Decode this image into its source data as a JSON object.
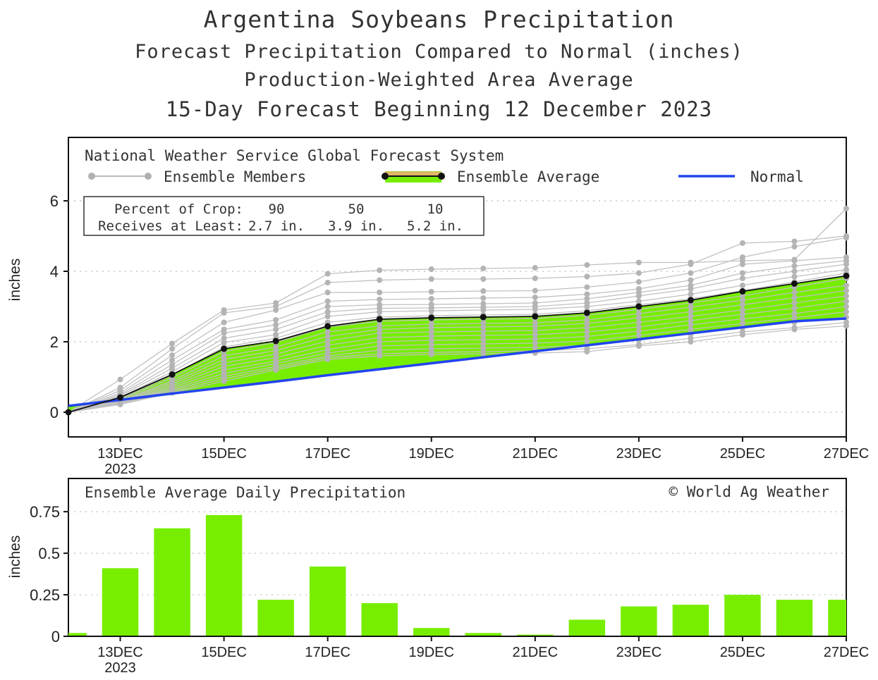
{
  "titles": {
    "main": "Argentina Soybeans Precipitation",
    "line2": "Forecast Precipitation Compared to Normal (inches)",
    "line3": "Production-Weighted Area Average",
    "line4": "15-Day Forecast Beginning 12 December 2023"
  },
  "legend": {
    "model": "National Weather Service Global Forecast System",
    "members": "Ensemble Members",
    "average": "Ensemble Average",
    "normal": "Normal"
  },
  "crop_box": {
    "row1_label": "Percent of Crop:",
    "row1_values": [
      "90",
      "50",
      "10"
    ],
    "row2_label": "Receives at Least:",
    "row2_values": [
      "2.7 in.",
      "3.9 in.",
      "5.2 in."
    ]
  },
  "bottom_panel": {
    "title": "Ensemble Average Daily Precipitation",
    "credit": "© World Ag Weather"
  },
  "colors": {
    "fill": "#77ee00",
    "normal": "#2244ee",
    "member": "#c0c0c0",
    "average": "#111111",
    "bar": "#77ee00"
  },
  "chart_data": [
    {
      "type": "line",
      "title": "Forecast Precipitation Compared to Normal (inches)",
      "ylabel": "inches",
      "xlabel": "",
      "xlim": [
        12,
        27
      ],
      "ylim": [
        -0.7,
        7.8
      ],
      "yticks": [
        0,
        2,
        4,
        6
      ],
      "ytick_labels": [
        "0",
        "2",
        "4",
        "6"
      ],
      "x_tick_days": [
        13,
        15,
        17,
        19,
        21,
        23,
        25,
        27
      ],
      "x_tick_labels": [
        "13DEC",
        "15DEC",
        "17DEC",
        "19DEC",
        "21DEC",
        "23DEC",
        "25DEC",
        "27DEC"
      ],
      "x_year_label": "2023",
      "x": [
        12,
        13,
        14,
        15,
        16,
        17,
        18,
        19,
        20,
        21,
        22,
        23,
        24,
        25,
        26,
        27
      ],
      "series": [
        {
          "name": "Ensemble Average",
          "values": [
            0.0,
            0.42,
            1.07,
            1.8,
            2.02,
            2.44,
            2.64,
            2.68,
            2.7,
            2.72,
            2.82,
            3.0,
            3.18,
            3.43,
            3.65,
            3.87
          ]
        },
        {
          "name": "Normal",
          "values": [
            0.18,
            0.35,
            0.53,
            0.7,
            0.87,
            1.05,
            1.22,
            1.39,
            1.56,
            1.73,
            1.9,
            2.07,
            2.24,
            2.41,
            2.58,
            2.66
          ]
        }
      ],
      "members": [
        [
          0.0,
          0.93,
          1.95,
          2.9,
          3.1,
          3.93,
          4.03,
          4.06,
          4.08,
          4.1,
          4.18,
          4.25,
          4.25,
          4.3,
          4.33,
          5.78
        ],
        [
          0.0,
          0.7,
          1.8,
          2.82,
          3.0,
          3.68,
          3.75,
          3.78,
          3.78,
          3.8,
          3.85,
          3.95,
          4.2,
          4.8,
          4.85,
          5.0
        ],
        [
          0.0,
          0.62,
          1.62,
          2.55,
          2.9,
          3.4,
          3.4,
          3.42,
          3.44,
          3.45,
          3.55,
          3.7,
          3.95,
          4.4,
          4.7,
          4.95
        ],
        [
          0.0,
          0.55,
          1.48,
          2.35,
          2.62,
          3.15,
          3.2,
          3.22,
          3.24,
          3.26,
          3.35,
          3.5,
          3.75,
          4.2,
          4.3,
          4.4
        ],
        [
          0.0,
          0.5,
          1.35,
          2.25,
          2.48,
          3.0,
          3.05,
          3.06,
          3.08,
          3.1,
          3.22,
          3.4,
          3.6,
          3.95,
          4.15,
          4.3
        ],
        [
          0.0,
          0.46,
          1.25,
          2.1,
          2.35,
          2.85,
          2.95,
          2.96,
          2.98,
          3.0,
          3.1,
          3.3,
          3.5,
          3.8,
          4.0,
          4.2
        ],
        [
          0.0,
          0.42,
          1.15,
          1.98,
          2.2,
          2.72,
          2.85,
          2.88,
          2.9,
          2.92,
          3.0,
          3.15,
          3.35,
          3.6,
          3.85,
          4.05
        ],
        [
          0.0,
          0.38,
          1.05,
          1.85,
          2.1,
          2.55,
          2.7,
          2.74,
          2.76,
          2.78,
          2.88,
          3.05,
          3.22,
          3.45,
          3.7,
          3.95
        ],
        [
          0.0,
          0.35,
          0.98,
          1.72,
          1.98,
          2.42,
          2.58,
          2.62,
          2.64,
          2.66,
          2.75,
          2.92,
          3.1,
          3.3,
          3.55,
          3.8
        ],
        [
          0.0,
          0.32,
          0.9,
          1.6,
          1.85,
          2.28,
          2.45,
          2.5,
          2.52,
          2.54,
          2.62,
          2.8,
          2.98,
          3.18,
          3.4,
          3.6
        ],
        [
          0.0,
          0.3,
          0.85,
          1.5,
          1.75,
          2.15,
          2.35,
          2.4,
          2.42,
          2.44,
          2.52,
          2.68,
          2.85,
          3.05,
          3.25,
          3.45
        ],
        [
          0.0,
          0.28,
          0.8,
          1.4,
          1.65,
          2.02,
          2.25,
          2.28,
          2.3,
          2.32,
          2.4,
          2.55,
          2.72,
          2.9,
          3.1,
          3.3
        ],
        [
          0.0,
          0.26,
          0.75,
          1.3,
          1.55,
          1.9,
          2.12,
          2.16,
          2.18,
          2.2,
          2.28,
          2.42,
          2.6,
          2.78,
          2.95,
          3.15
        ],
        [
          0.0,
          0.25,
          0.7,
          1.2,
          1.45,
          1.78,
          2.0,
          2.04,
          2.06,
          2.08,
          2.15,
          2.3,
          2.48,
          2.65,
          2.8,
          3.0
        ],
        [
          0.0,
          0.24,
          0.66,
          1.1,
          1.38,
          1.68,
          1.88,
          1.92,
          1.94,
          1.96,
          2.02,
          2.18,
          2.35,
          2.52,
          2.68,
          2.85
        ],
        [
          0.0,
          0.24,
          0.62,
          1.02,
          1.3,
          1.6,
          1.76,
          1.8,
          1.82,
          1.84,
          1.9,
          2.05,
          2.22,
          2.4,
          2.55,
          2.7
        ],
        [
          0.0,
          0.23,
          0.58,
          0.95,
          1.25,
          1.55,
          1.66,
          1.7,
          1.72,
          1.74,
          1.8,
          1.92,
          2.1,
          2.28,
          2.4,
          2.55
        ],
        [
          0.0,
          0.22,
          0.55,
          0.88,
          1.2,
          1.5,
          1.6,
          1.64,
          1.66,
          1.68,
          1.72,
          1.88,
          2.0,
          2.2,
          2.35,
          2.45
        ]
      ]
    },
    {
      "type": "bar",
      "title": "Ensemble Average Daily Precipitation",
      "ylabel": "inches",
      "xlabel": "",
      "xlim": [
        12,
        27
      ],
      "ylim": [
        0,
        0.95
      ],
      "yticks": [
        0,
        0.25,
        0.5,
        0.75
      ],
      "ytick_labels": [
        "0",
        "0.25",
        "0.5",
        "0.75"
      ],
      "x_tick_days": [
        13,
        15,
        17,
        19,
        21,
        23,
        25,
        27
      ],
      "x_tick_labels": [
        "13DEC",
        "15DEC",
        "17DEC",
        "19DEC",
        "21DEC",
        "23DEC",
        "25DEC",
        "27DEC"
      ],
      "x_year_label": "2023",
      "x": [
        12,
        13,
        14,
        15,
        16,
        17,
        18,
        19,
        20,
        21,
        22,
        23,
        24,
        25,
        26,
        27
      ],
      "values": [
        0.02,
        0.41,
        0.65,
        0.73,
        0.22,
        0.42,
        0.2,
        0.05,
        0.02,
        0.01,
        0.1,
        0.18,
        0.19,
        0.25,
        0.22,
        0.22
      ]
    }
  ]
}
